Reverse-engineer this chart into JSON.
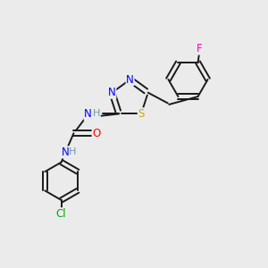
{
  "background_color": "#ebebeb",
  "bond_color": "#1a1a1a",
  "atom_colors": {
    "N": "#0000ff",
    "S": "#ccaa00",
    "O": "#ff0000",
    "F": "#ff00cc",
    "Cl": "#00aa00",
    "H": "#6a9a9a",
    "C": "#1a1a1a"
  },
  "figsize": [
    3.0,
    3.0
  ],
  "dpi": 100,
  "xlim": [
    0,
    10
  ],
  "ylim": [
    0,
    10
  ]
}
